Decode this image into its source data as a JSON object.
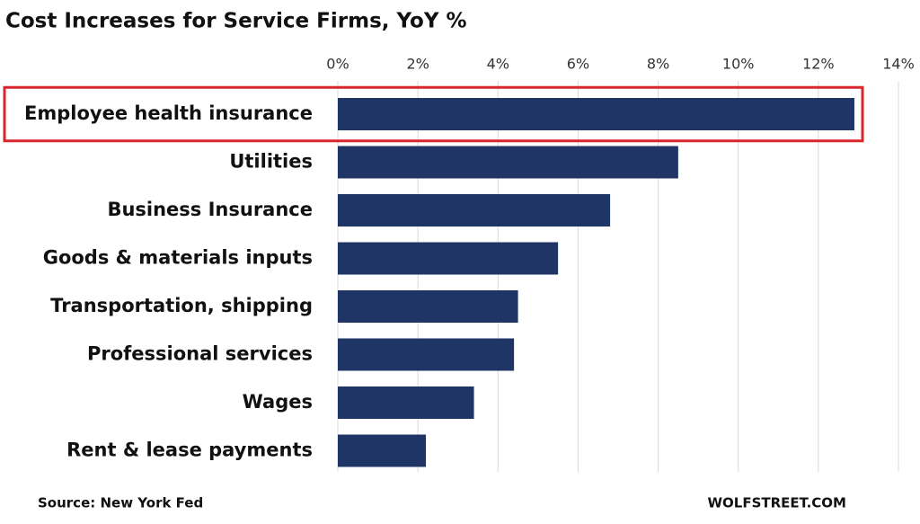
{
  "chart_data": {
    "type": "bar",
    "orientation": "horizontal",
    "title": "Cost Increases for Service Firms, YoY %",
    "categories": [
      "Employee health insurance",
      "Utilities",
      "Business Insurance",
      "Goods & materials inputs",
      "Transportation, shipping",
      "Professional services",
      "Wages",
      "Rent & lease payments"
    ],
    "values": [
      12.9,
      8.5,
      6.8,
      5.5,
      4.5,
      4.4,
      3.4,
      2.2
    ],
    "color": "#1f3566",
    "xlim": [
      0,
      14
    ],
    "xticks": [
      {
        "value": 0,
        "label": "0%"
      },
      {
        "value": 2,
        "label": "2%"
      },
      {
        "value": 4,
        "label": "4%"
      },
      {
        "value": 6,
        "label": "6%"
      },
      {
        "value": 8,
        "label": "8%"
      },
      {
        "value": 10,
        "label": "10%"
      },
      {
        "value": 12,
        "label": "12%"
      },
      {
        "value": 14,
        "label": "14%"
      }
    ],
    "grid": true,
    "source": "Source: New York Fed",
    "watermark": "WOLFSTREET.COM"
  }
}
